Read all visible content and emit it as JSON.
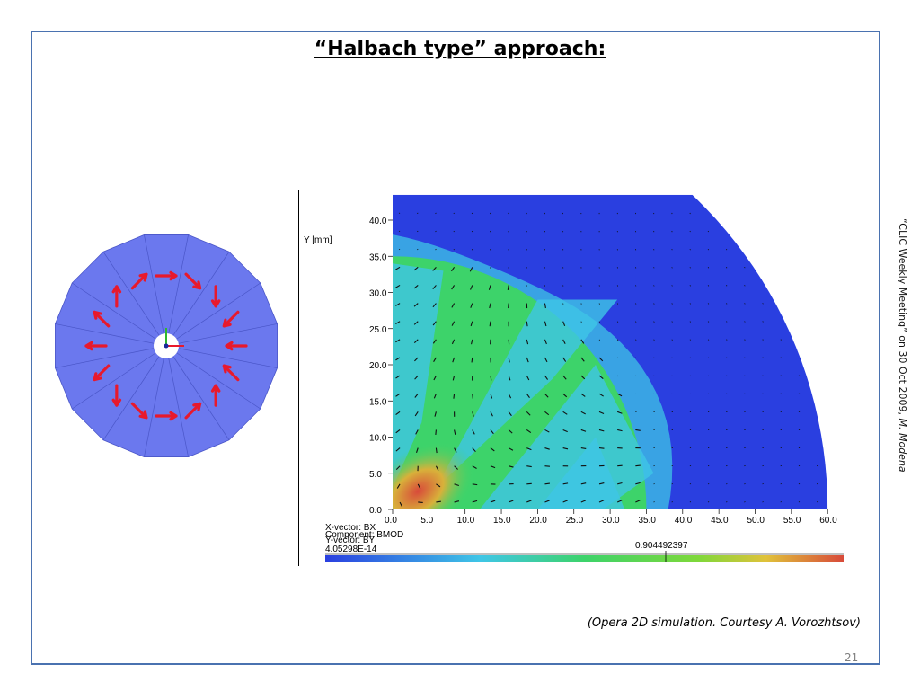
{
  "slide": {
    "title": "“Halbach type” approach:",
    "side_note": "“CLIC Weekly Meeting” on 30 Oct 2009,",
    "side_note_author": "M. Modena",
    "caption": "(Opera 2D simulation. Courtesy A. Vorozhtsov)",
    "page_number": "21"
  },
  "plot": {
    "y_label": "Y [mm]",
    "y_ticks": [
      "0.0",
      "5.0",
      "10.0",
      "15.0",
      "20.0",
      "25.0",
      "30.0",
      "35.0",
      "40.0"
    ],
    "x_ticks": [
      "0.0",
      "5.0",
      "10.0",
      "15.0",
      "20.0",
      "25.0",
      "30.0",
      "35.0",
      "40.0",
      "45.0",
      "50.0",
      "55.0",
      "60.0"
    ],
    "x_vector": "X-vector:  BX",
    "y_vector": "Y-vector:  BY",
    "component": "Component: BMOD",
    "scale_min": "4.05298E-14",
    "scale_marker": "0.904492397",
    "colors": {
      "background": "#2a3fe0",
      "mid": "#3dd36a",
      "high": "#d84a3a",
      "cyan": "#3fc6e6",
      "magnet_disc": "#6b78ee",
      "arrow": "#e8192c"
    }
  }
}
